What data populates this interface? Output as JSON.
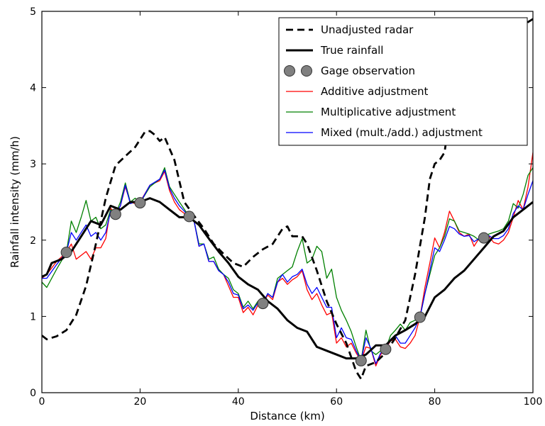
{
  "chart_data": {
    "type": "line",
    "title": "",
    "xlabel": "Distance (km)",
    "ylabel": "Rainfall intensity (mm/h)",
    "xlim": [
      0,
      100
    ],
    "ylim": [
      0,
      5
    ],
    "xticks": [
      "0",
      "20",
      "40",
      "60",
      "80",
      "100"
    ],
    "yticks": [
      "0",
      "1",
      "2",
      "3",
      "4",
      "5"
    ],
    "grid": false,
    "legend_position": "top-right",
    "series": [
      {
        "name": "Unadjusted radar",
        "color": "#000000",
        "style": "dashed",
        "x": [
          0,
          1,
          3,
          5,
          7,
          9,
          11,
          13,
          15,
          17,
          19,
          21,
          22,
          23,
          24,
          25,
          27,
          29,
          31,
          33,
          35,
          37,
          39,
          41,
          43,
          45,
          47,
          49,
          50,
          51,
          53,
          54,
          56,
          58,
          60,
          62,
          64,
          65,
          66,
          68,
          70,
          72,
          74,
          76,
          78,
          79,
          80,
          81,
          82,
          83,
          84,
          85,
          86,
          87,
          88,
          89,
          90,
          92,
          94,
          96,
          98,
          100
        ],
        "y": [
          0.75,
          0.7,
          0.74,
          0.82,
          1.02,
          1.4,
          1.95,
          2.55,
          2.98,
          3.1,
          3.22,
          3.42,
          3.43,
          3.38,
          3.3,
          3.35,
          3.05,
          2.5,
          2.32,
          2.15,
          1.95,
          1.82,
          1.7,
          1.65,
          1.78,
          1.88,
          1.95,
          2.15,
          2.18,
          2.05,
          2.05,
          1.95,
          1.6,
          1.2,
          0.9,
          0.65,
          0.28,
          0.18,
          0.35,
          0.4,
          0.52,
          0.72,
          0.95,
          1.55,
          2.3,
          2.8,
          3.0,
          3.05,
          3.15,
          3.6,
          3.65,
          3.8,
          3.95,
          4.05,
          4.15,
          4.3,
          4.4,
          4.55,
          4.65,
          4.75,
          4.82,
          4.9
        ]
      },
      {
        "name": "True rainfall",
        "color": "#000000",
        "style": "solid-thick",
        "x": [
          0,
          1,
          2,
          4,
          6,
          8,
          10,
          12,
          14,
          16,
          18,
          20,
          22,
          24,
          26,
          28,
          30,
          32,
          34,
          36,
          38,
          40,
          42,
          44,
          46,
          48,
          50,
          52,
          54,
          56,
          58,
          60,
          62,
          64,
          66,
          68,
          70,
          72,
          74,
          76,
          78,
          80,
          82,
          84,
          86,
          88,
          90,
          92,
          94,
          96,
          98,
          100
        ],
        "y": [
          1.52,
          1.55,
          1.7,
          1.75,
          1.85,
          2.05,
          2.25,
          2.2,
          2.45,
          2.4,
          2.5,
          2.5,
          2.55,
          2.5,
          2.4,
          2.3,
          2.3,
          2.2,
          2.02,
          1.85,
          1.7,
          1.52,
          1.42,
          1.35,
          1.2,
          1.1,
          0.95,
          0.85,
          0.8,
          0.6,
          0.55,
          0.5,
          0.45,
          0.45,
          0.5,
          0.62,
          0.62,
          0.75,
          0.82,
          0.9,
          1.0,
          1.25,
          1.35,
          1.5,
          1.6,
          1.75,
          1.9,
          2.05,
          2.12,
          2.3,
          2.4,
          2.5
        ]
      },
      {
        "name": "Gage observation",
        "color": "#808080",
        "style": "markers",
        "x": [
          5,
          15,
          20,
          30,
          45,
          65,
          70,
          77,
          90
        ],
        "y": [
          1.84,
          2.34,
          2.49,
          2.31,
          1.17,
          0.42,
          0.57,
          0.99,
          2.03
        ]
      },
      {
        "name": "Additive adjustment",
        "color": "#ff0000",
        "style": "solid",
        "x": [
          0,
          1,
          3,
          5,
          6,
          7,
          9,
          10,
          11,
          12,
          13,
          14,
          15,
          16,
          17,
          18,
          19,
          20,
          22,
          24,
          25,
          26,
          27,
          28,
          30,
          31,
          32,
          33,
          34,
          35,
          36,
          37,
          38,
          39,
          40,
          41,
          42,
          43,
          44,
          45,
          46,
          47,
          48,
          49,
          50,
          51,
          52,
          53,
          54,
          55,
          56,
          57,
          58,
          59,
          60,
          61,
          62,
          63,
          64,
          65,
          66,
          67,
          68,
          69,
          70,
          71,
          72,
          73,
          74,
          75,
          76,
          77,
          78,
          79,
          80,
          81,
          82,
          83,
          84,
          85,
          86,
          87,
          88,
          89,
          90,
          91,
          92,
          93,
          94,
          95,
          96,
          97,
          98,
          99,
          100
        ],
        "y": [
          1.5,
          1.55,
          1.72,
          1.84,
          1.95,
          1.75,
          1.85,
          1.75,
          1.9,
          1.9,
          2.02,
          2.42,
          2.34,
          2.45,
          2.7,
          2.5,
          2.48,
          2.5,
          2.72,
          2.78,
          2.9,
          2.65,
          2.5,
          2.4,
          2.3,
          2.25,
          1.92,
          1.95,
          1.72,
          1.72,
          1.6,
          1.55,
          1.4,
          1.25,
          1.25,
          1.05,
          1.12,
          1.02,
          1.15,
          1.17,
          1.28,
          1.22,
          1.45,
          1.5,
          1.42,
          1.48,
          1.52,
          1.6,
          1.35,
          1.22,
          1.3,
          1.15,
          1.02,
          1.05,
          0.65,
          0.72,
          0.6,
          0.65,
          0.52,
          0.42,
          0.6,
          0.58,
          0.35,
          0.5,
          0.57,
          0.68,
          0.7,
          0.6,
          0.58,
          0.65,
          0.75,
          0.99,
          1.38,
          1.7,
          2.03,
          1.9,
          2.1,
          2.38,
          2.25,
          2.1,
          2.05,
          2.08,
          1.92,
          2.02,
          2.03,
          2.05,
          1.97,
          1.95,
          2.0,
          2.1,
          2.3,
          2.52,
          2.4,
          2.7,
          3.15
        ]
      },
      {
        "name": "Multiplicative adjustment",
        "color": "#008000",
        "style": "solid",
        "x": [
          0,
          1,
          3,
          5,
          6,
          7,
          8,
          9,
          10,
          11,
          12,
          13,
          14,
          15,
          16,
          17,
          18,
          19,
          20,
          22,
          24,
          25,
          26,
          27,
          28,
          30,
          31,
          32,
          33,
          34,
          35,
          36,
          37,
          38,
          39,
          40,
          41,
          42,
          43,
          44,
          45,
          46,
          47,
          48,
          49,
          50,
          51,
          52,
          53,
          54,
          55,
          56,
          57,
          58,
          59,
          60,
          61,
          62,
          63,
          64,
          65,
          66,
          67,
          68,
          69,
          70,
          71,
          72,
          73,
          74,
          75,
          76,
          77,
          78,
          79,
          80,
          81,
          82,
          83,
          84,
          85,
          86,
          87,
          88,
          89,
          90,
          91,
          92,
          93,
          94,
          95,
          96,
          97,
          98,
          99,
          100
        ],
        "y": [
          1.45,
          1.38,
          1.62,
          1.84,
          2.25,
          2.1,
          2.3,
          2.52,
          2.25,
          2.3,
          2.15,
          2.2,
          2.4,
          2.34,
          2.5,
          2.75,
          2.5,
          2.55,
          2.49,
          2.7,
          2.8,
          2.95,
          2.7,
          2.6,
          2.5,
          2.31,
          2.25,
          1.95,
          1.95,
          1.75,
          1.78,
          1.62,
          1.55,
          1.5,
          1.35,
          1.3,
          1.12,
          1.2,
          1.1,
          1.2,
          1.17,
          1.3,
          1.25,
          1.5,
          1.55,
          1.6,
          1.65,
          1.85,
          2.02,
          1.7,
          1.75,
          1.92,
          1.85,
          1.5,
          1.62,
          1.25,
          1.08,
          0.95,
          0.8,
          0.6,
          0.42,
          0.82,
          0.55,
          0.5,
          0.55,
          0.57,
          0.75,
          0.82,
          0.9,
          0.82,
          0.92,
          0.95,
          0.99,
          1.3,
          1.55,
          1.8,
          1.9,
          2.05,
          2.28,
          2.25,
          2.12,
          2.1,
          2.08,
          2.05,
          2.0,
          2.03,
          2.08,
          2.1,
          2.12,
          2.15,
          2.25,
          2.48,
          2.42,
          2.6,
          2.85,
          2.95
        ]
      },
      {
        "name": "Mixed (mult./add.) adjustment",
        "color": "#0000ff",
        "style": "solid",
        "x": [
          0,
          1,
          3,
          5,
          6,
          7,
          9,
          10,
          11,
          12,
          13,
          14,
          15,
          16,
          17,
          18,
          19,
          20,
          22,
          24,
          25,
          26,
          27,
          28,
          30,
          31,
          32,
          33,
          34,
          35,
          36,
          37,
          38,
          39,
          40,
          41,
          42,
          43,
          44,
          45,
          46,
          47,
          48,
          49,
          50,
          51,
          52,
          53,
          54,
          55,
          56,
          57,
          58,
          59,
          60,
          61,
          62,
          63,
          64,
          65,
          66,
          67,
          68,
          69,
          70,
          71,
          72,
          73,
          74,
          75,
          76,
          77,
          78,
          79,
          80,
          81,
          82,
          83,
          84,
          85,
          86,
          87,
          88,
          89,
          90,
          91,
          92,
          93,
          94,
          95,
          96,
          97,
          98,
          99,
          100
        ],
        "y": [
          1.5,
          1.5,
          1.68,
          1.84,
          2.1,
          2.0,
          2.2,
          2.05,
          2.1,
          2.0,
          2.1,
          2.38,
          2.34,
          2.45,
          2.72,
          2.48,
          2.5,
          2.49,
          2.72,
          2.8,
          2.92,
          2.68,
          2.55,
          2.45,
          2.31,
          2.25,
          1.92,
          1.95,
          1.72,
          1.72,
          1.6,
          1.55,
          1.45,
          1.3,
          1.28,
          1.1,
          1.15,
          1.08,
          1.18,
          1.17,
          1.3,
          1.25,
          1.45,
          1.55,
          1.45,
          1.52,
          1.55,
          1.62,
          1.42,
          1.3,
          1.38,
          1.25,
          1.12,
          1.12,
          0.72,
          0.85,
          0.72,
          0.7,
          0.55,
          0.42,
          0.72,
          0.58,
          0.38,
          0.52,
          0.57,
          0.7,
          0.75,
          0.65,
          0.65,
          0.75,
          0.85,
          0.99,
          1.3,
          1.6,
          1.9,
          1.85,
          2.0,
          2.18,
          2.15,
          2.08,
          2.05,
          2.06,
          1.98,
          2.02,
          2.03,
          2.06,
          2.02,
          2.02,
          2.06,
          2.15,
          2.35,
          2.45,
          2.4,
          2.6,
          2.78
        ]
      }
    ]
  }
}
